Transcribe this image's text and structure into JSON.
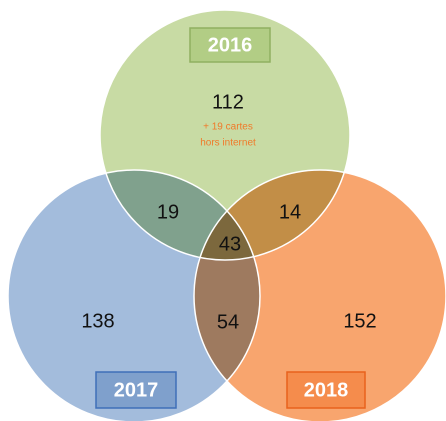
{
  "sets": [
    {
      "label": "2016"
    },
    {
      "label": "2017"
    },
    {
      "label": "2018"
    }
  ],
  "regions": {
    "only_2016": "112",
    "only_2016_note": [
      "+ 19 cartes",
      "hors internet"
    ],
    "2016_2017": "19",
    "2016_2018": "14",
    "all": "43",
    "only_2017": "138",
    "2017_2018": "54",
    "only_2018": "152"
  }
}
